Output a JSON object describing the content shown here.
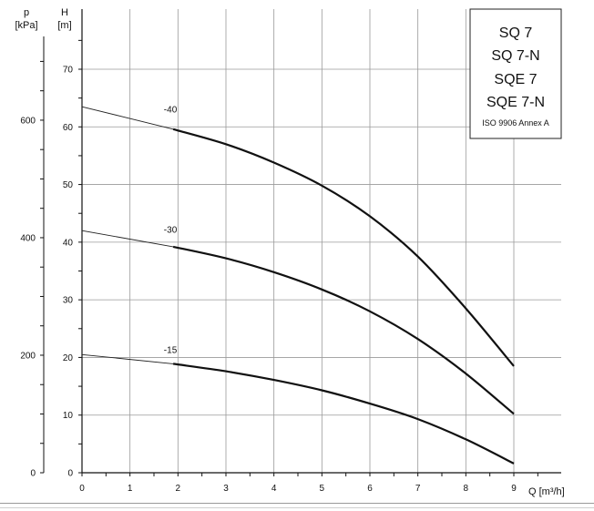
{
  "chart_data": {
    "type": "line",
    "title": "",
    "x_axis": {
      "label": "Q [m³/h]",
      "range": [
        0,
        10
      ],
      "ticks": [
        0,
        1,
        2,
        3,
        4,
        5,
        6,
        7,
        8,
        9
      ]
    },
    "y_axis_head": {
      "label_symbol": "H",
      "label_unit": "[m]",
      "range": [
        0,
        78
      ],
      "ticks": [
        0,
        10,
        20,
        30,
        40,
        50,
        60,
        70
      ]
    },
    "y_axis_pressure": {
      "label_symbol": "p",
      "label_unit": "[kPa]",
      "ticks": [
        0,
        200,
        400,
        600
      ]
    },
    "grid": true,
    "legend_box": {
      "position": "top-right",
      "models": [
        "SQ 7",
        "SQ 7-N",
        "SQE 7",
        "SQE 7-N"
      ],
      "standard": "ISO 9906 Annex A"
    },
    "series": [
      {
        "name": "-40",
        "label_at": [
          1.8,
          62.5
        ],
        "thin_points": [
          [
            0,
            63.5
          ],
          [
            1.9,
            59.6
          ]
        ],
        "points": [
          [
            1.9,
            59.6
          ],
          [
            3,
            57
          ],
          [
            4,
            53.8
          ],
          [
            5,
            49.8
          ],
          [
            6,
            44.5
          ],
          [
            7,
            37.5
          ],
          [
            8,
            28.5
          ],
          [
            9,
            18.5
          ]
        ]
      },
      {
        "name": "-30",
        "label_at": [
          1.8,
          41.6
        ],
        "thin_points": [
          [
            0,
            42
          ],
          [
            1.9,
            39.2
          ]
        ],
        "points": [
          [
            1.9,
            39.2
          ],
          [
            3,
            37.2
          ],
          [
            4,
            34.8
          ],
          [
            5,
            31.8
          ],
          [
            6,
            28
          ],
          [
            7,
            23.2
          ],
          [
            8,
            17.2
          ],
          [
            9,
            10.2
          ]
        ]
      },
      {
        "name": "-15",
        "label_at": [
          1.8,
          20.8
        ],
        "thin_points": [
          [
            0,
            20.5
          ],
          [
            1.9,
            18.9
          ]
        ],
        "points": [
          [
            1.9,
            18.9
          ],
          [
            3,
            17.6
          ],
          [
            4,
            16.1
          ],
          [
            5,
            14.3
          ],
          [
            6,
            12
          ],
          [
            7,
            9.3
          ],
          [
            8,
            5.8
          ],
          [
            9,
            1.6
          ]
        ]
      }
    ]
  }
}
